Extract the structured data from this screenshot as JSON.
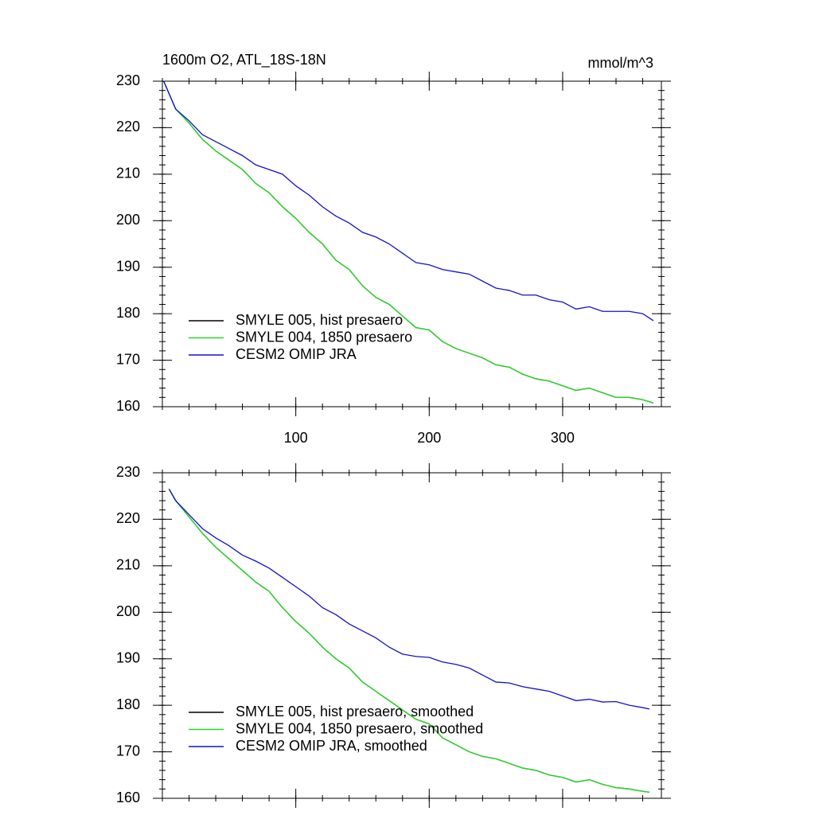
{
  "chart_data": [
    {
      "type": "line",
      "title": "1600m O2, ATL_18S-18N",
      "units": "mmol/m^3",
      "x": [
        1,
        10,
        20,
        30,
        40,
        50,
        60,
        70,
        80,
        90,
        100,
        110,
        120,
        130,
        140,
        150,
        160,
        170,
        180,
        190,
        200,
        210,
        220,
        230,
        240,
        250,
        260,
        270,
        280,
        290,
        300,
        310,
        320,
        330,
        340,
        350,
        360,
        368
      ],
      "series": [
        {
          "name": "SMYLE 005, hist presaero",
          "color": "#000000",
          "values": [
            230,
            224,
            221,
            217.5,
            215,
            213,
            211,
            208,
            206,
            203,
            200.5,
            197.5,
            195,
            191.5,
            189.5,
            186,
            183.5,
            182,
            179.5,
            177,
            176.5,
            174,
            172.5,
            171.5,
            170.5,
            169,
            168.5,
            167,
            166,
            165.5,
            164.5,
            163.5,
            164,
            163,
            162,
            162,
            161.5,
            160.8
          ]
        },
        {
          "name": "SMYLE 004, 1850 presaero",
          "color": "#22dd22",
          "values": [
            230,
            224,
            221,
            217.5,
            215,
            213,
            211,
            208,
            206,
            203,
            200.5,
            197.5,
            195,
            191.5,
            189.5,
            186,
            183.5,
            182,
            179.5,
            177,
            176.5,
            174,
            172.5,
            171.5,
            170.5,
            169,
            168.5,
            167,
            166,
            165.5,
            164.5,
            163.5,
            164,
            163,
            162,
            162,
            161.5,
            160.8
          ]
        },
        {
          "name": "CESM2 OMIP JRA",
          "color": "#1212cc",
          "values": [
            230,
            224,
            221.5,
            218.5,
            217,
            215.5,
            214,
            212,
            211,
            210,
            207.5,
            205.5,
            203,
            201,
            199.5,
            197.5,
            196.5,
            195,
            193,
            191,
            190.5,
            189.5,
            189,
            188.5,
            187,
            185.5,
            185,
            184,
            184,
            183,
            182.5,
            181,
            181.5,
            180.5,
            180.5,
            180.5,
            180,
            178.5
          ]
        }
      ],
      "xlim": [
        0,
        374
      ],
      "xticks": [
        100,
        200,
        300
      ],
      "ylim": [
        160,
        230
      ],
      "yticks": [
        160,
        170,
        180,
        190,
        200,
        210,
        220,
        230
      ],
      "xminor_step": 20,
      "yminor_step": 2,
      "show_xtick_labels": true,
      "legend": "lower left"
    },
    {
      "type": "line",
      "x": [
        5,
        10,
        20,
        30,
        40,
        50,
        60,
        70,
        80,
        90,
        100,
        110,
        120,
        130,
        140,
        150,
        160,
        170,
        180,
        190,
        200,
        210,
        220,
        230,
        240,
        250,
        260,
        270,
        280,
        290,
        300,
        310,
        320,
        330,
        340,
        350,
        360,
        365
      ],
      "series": [
        {
          "name": "SMYLE 005, hist presaero, smoothed",
          "color": "#000000",
          "values": [
            226.5,
            224,
            220.5,
            217,
            214,
            211.5,
            209,
            206.5,
            204.5,
            201,
            198,
            195.5,
            192.5,
            190,
            188,
            185,
            183,
            181,
            179,
            177,
            176,
            173,
            171.5,
            170,
            169,
            168.5,
            167.5,
            166.5,
            166,
            165,
            164.5,
            163.5,
            164,
            163,
            162.3,
            162,
            161.5,
            161.3
          ]
        },
        {
          "name": "SMYLE 004, 1850 presaero, smoothed",
          "color": "#22dd22",
          "values": [
            226.5,
            224,
            220.5,
            217,
            214,
            211.5,
            209,
            206.5,
            204.5,
            201,
            198,
            195.5,
            192.5,
            190,
            188,
            185,
            183,
            181,
            179,
            177,
            176,
            173,
            171.5,
            170,
            169,
            168.5,
            167.5,
            166.5,
            166,
            165,
            164.5,
            163.5,
            164,
            163,
            162.3,
            162,
            161.5,
            161.3
          ]
        },
        {
          "name": "CESM2 OMIP JRA, smoothed",
          "color": "#1212cc",
          "values": [
            226.5,
            224,
            221,
            218,
            216,
            214.3,
            212.3,
            211,
            209.5,
            207.5,
            205.5,
            203.5,
            201,
            199.5,
            197.5,
            196,
            194.5,
            192.5,
            191,
            190.5,
            190.3,
            189.3,
            188.8,
            188,
            186.5,
            185,
            184.8,
            184,
            183.5,
            183,
            182,
            181,
            181.3,
            180.7,
            180.8,
            180,
            179.5,
            179.2
          ]
        }
      ],
      "xlim": [
        0,
        374
      ],
      "xticks": [
        100,
        200,
        300
      ],
      "ylim": [
        160,
        230
      ],
      "yticks": [
        160,
        170,
        180,
        190,
        200,
        210,
        220,
        230
      ],
      "xminor_step": 20,
      "yminor_step": 2,
      "show_xtick_labels": false,
      "legend": "lower left"
    }
  ]
}
